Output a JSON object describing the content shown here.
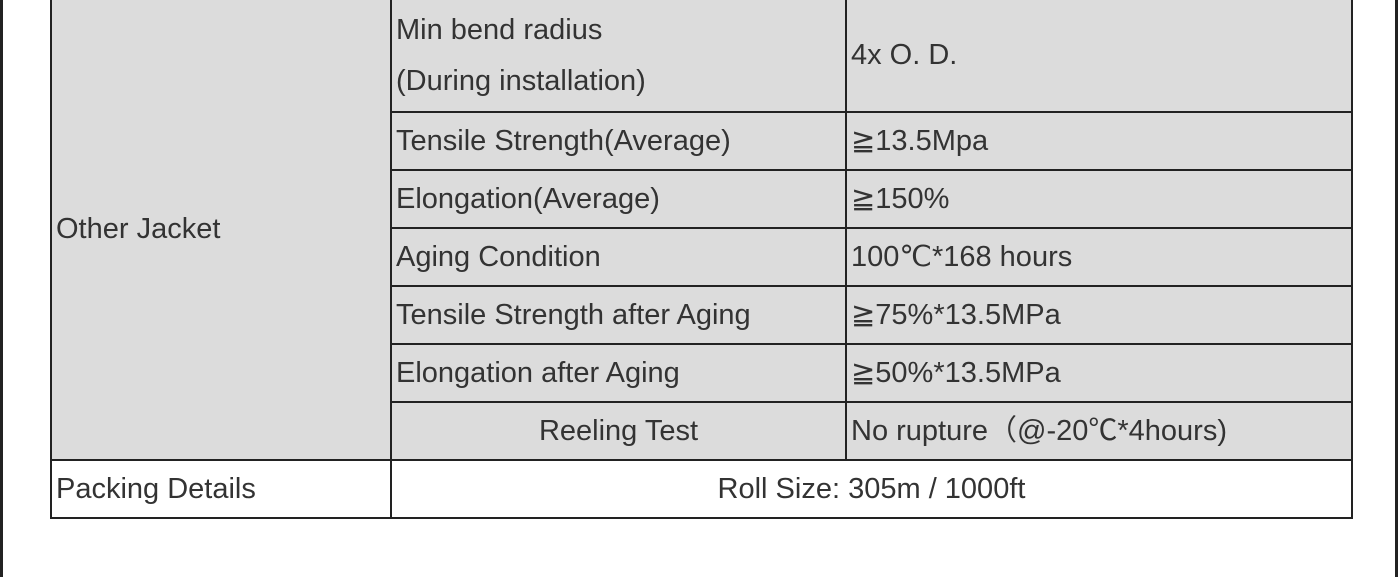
{
  "table": {
    "group": "Other Jacket",
    "rows": [
      [
        "Min bend radius\n(During installation)",
        "4x O. D."
      ],
      [
        "Tensile Strength(Average)",
        "≧13.5Mpa"
      ],
      [
        "Elongation(Average)",
        "≧150%"
      ],
      [
        "Aging Condition",
        "100℃*168 hours"
      ],
      [
        "Tensile Strength after Aging",
        "≧75%*13.5MPa"
      ],
      [
        "Elongation after Aging",
        "≧50%*13.5MPa"
      ],
      [
        "Reeling Test",
        "No rupture（@-20℃*4hours)"
      ]
    ],
    "footer": [
      "Packing Details",
      "Roll Size: 305m / 1000ft"
    ]
  }
}
